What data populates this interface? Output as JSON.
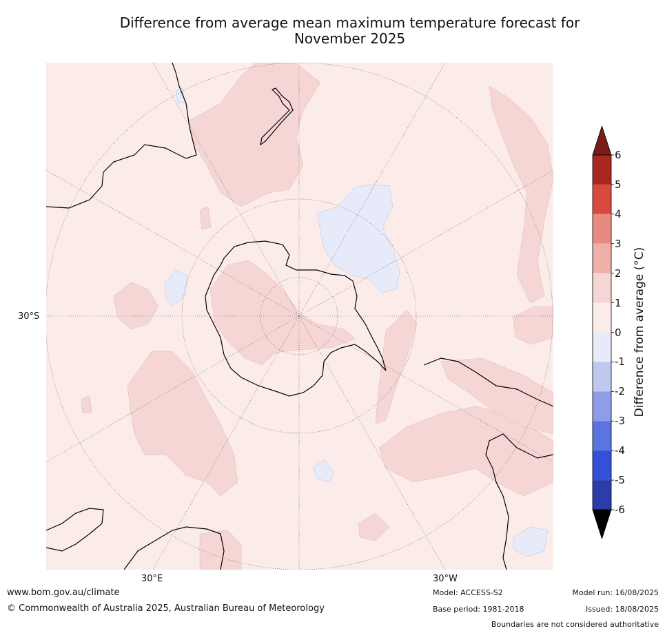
{
  "title": {
    "line1": "Difference from average mean maximum temperature forecast for",
    "line2": "November 2025"
  },
  "map": {
    "projection": "south-polar-stereographic",
    "latitude_labels": [
      "30°S"
    ],
    "longitude_labels": [
      "30°E",
      "30°W"
    ]
  },
  "colorbar": {
    "label": "Difference from average (°C)",
    "ticks": [
      "6",
      "5",
      "4",
      "3",
      "2",
      "1",
      "0",
      "-1",
      "-2",
      "-3",
      "-4",
      "-5",
      "-6"
    ],
    "colors": {
      "above_6": "#7b1c17",
      "5_to_6": "#a8281f",
      "4_to_5": "#d94a3e",
      "3_to_4": "#e88a80",
      "2_to_3": "#efb0aa",
      "1_to_2": "#f5d6d5",
      "0_to_1": "#fbecea",
      "-1_to_0": "#e6eaf9",
      "-2_to_-1": "#c0c8f0",
      "-3_to_-2": "#8e9cea",
      "-4_to_-3": "#5a74e0",
      "-5_to_-4": "#3450d8",
      "-6_to_-5": "#2a3da8",
      "below_-6": "#1d2a7a"
    }
  },
  "footer": {
    "website": "www.bom.gov.au/climate",
    "copyright": "© Commonwealth of Australia 2025, Australian Bureau of Meteorology",
    "model": "Model: ACCESS-S2",
    "base_period": "Base period: 1981-2018",
    "model_run": "Model run: 16/08/2025",
    "issued": "Issued: 18/08/2025",
    "disclaimer": "Boundaries are not considered authoritative"
  }
}
